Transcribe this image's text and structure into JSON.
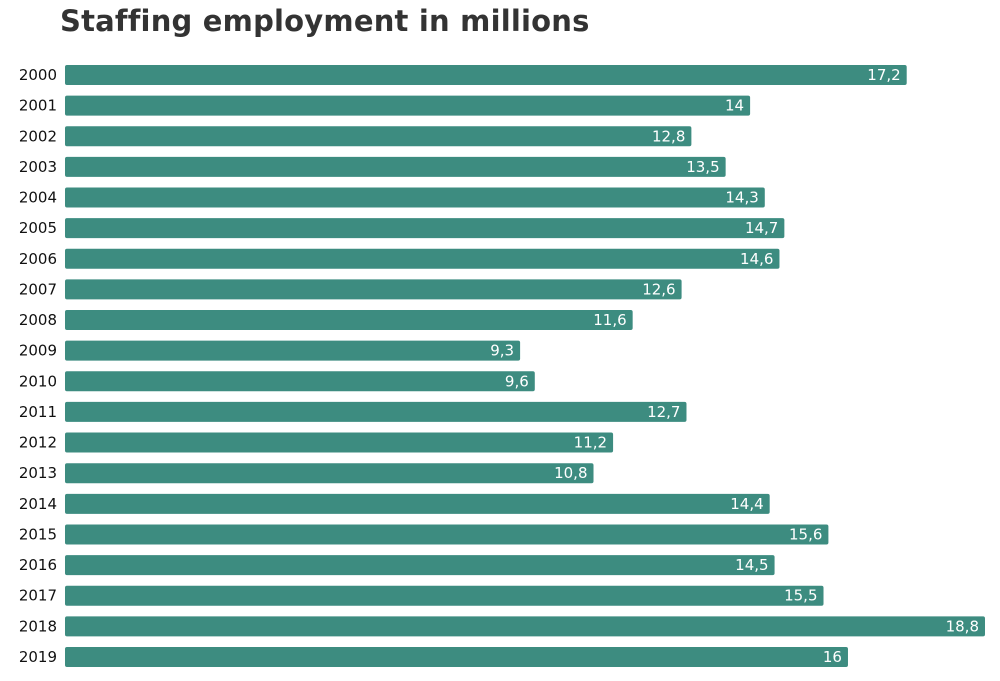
{
  "chart_data": {
    "type": "bar",
    "orientation": "horizontal",
    "title": "Staffing employment in millions",
    "xlabel": "",
    "ylabel": "",
    "categories": [
      "2000",
      "2001",
      "2002",
      "2003",
      "2004",
      "2005",
      "2006",
      "2007",
      "2008",
      "2009",
      "2010",
      "2011",
      "2012",
      "2013",
      "2014",
      "2015",
      "2016",
      "2017",
      "2018",
      "2019"
    ],
    "values": [
      17.2,
      14,
      12.8,
      13.5,
      14.3,
      14.7,
      14.6,
      12.6,
      11.6,
      9.3,
      9.6,
      12.7,
      11.2,
      10.8,
      14.4,
      15.6,
      14.5,
      15.5,
      18.8,
      16
    ],
    "value_labels": [
      "17,2",
      "14",
      "12,8",
      "13,5",
      "14,3",
      "14,7",
      "14,6",
      "12,6",
      "11,6",
      "9,3",
      "9,6",
      "12,7",
      "11,2",
      "10,8",
      "14,4",
      "15,6",
      "14,5",
      "15,5",
      "18,8",
      "16"
    ],
    "xlim": [
      0,
      18.8
    ],
    "grid": false,
    "legend": "none",
    "bar_color": "#3d8c80"
  }
}
